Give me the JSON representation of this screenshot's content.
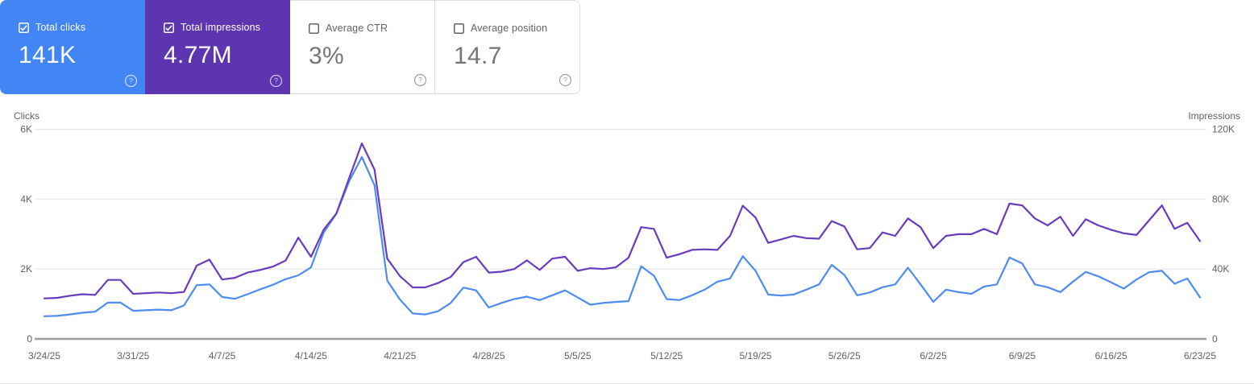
{
  "metric_cards": [
    {
      "id": "total-clicks",
      "label": "Total clicks",
      "value": "141K",
      "checked": true,
      "style": "blue"
    },
    {
      "id": "total-impressions",
      "label": "Total impressions",
      "value": "4.77M",
      "checked": true,
      "style": "purple"
    },
    {
      "id": "average-ctr",
      "label": "Average CTR",
      "value": "3%",
      "checked": false,
      "style": "white"
    },
    {
      "id": "average-position",
      "label": "Average position",
      "value": "14.7",
      "checked": false,
      "style": "white"
    }
  ],
  "icons": {
    "help_glyph": "?"
  },
  "colors": {
    "clicks_card_bg": "#4285f4",
    "impressions_card_bg": "#5e35b1",
    "clicks_line": "#4d8cf0",
    "impressions_line": "#693cbe",
    "grid_line": "#e8eaed",
    "zero_line": "#9aa0a6",
    "tick_text": "#5f6368"
  },
  "chart_data": {
    "type": "line",
    "title": "",
    "grid": true,
    "legend_position": "none",
    "x": [
      "3/24/25",
      "3/25/25",
      "3/26/25",
      "3/27/25",
      "3/28/25",
      "3/29/25",
      "3/30/25",
      "3/31/25",
      "4/1/25",
      "4/2/25",
      "4/3/25",
      "4/4/25",
      "4/5/25",
      "4/6/25",
      "4/7/25",
      "4/8/25",
      "4/9/25",
      "4/10/25",
      "4/11/25",
      "4/12/25",
      "4/13/25",
      "4/14/25",
      "4/15/25",
      "4/16/25",
      "4/17/25",
      "4/18/25",
      "4/19/25",
      "4/20/25",
      "4/21/25",
      "4/22/25",
      "4/23/25",
      "4/24/25",
      "4/25/25",
      "4/26/25",
      "4/27/25",
      "4/28/25",
      "4/29/25",
      "4/30/25",
      "5/1/25",
      "5/2/25",
      "5/3/25",
      "5/4/25",
      "5/5/25",
      "5/6/25",
      "5/7/25",
      "5/8/25",
      "5/9/25",
      "5/10/25",
      "5/11/25",
      "5/12/25",
      "5/13/25",
      "5/14/25",
      "5/15/25",
      "5/16/25",
      "5/17/25",
      "5/18/25",
      "5/19/25",
      "5/20/25",
      "5/21/25",
      "5/22/25",
      "5/23/25",
      "5/24/25",
      "5/25/25",
      "5/26/25",
      "5/27/25",
      "5/28/25",
      "5/29/25",
      "5/30/25",
      "5/31/25",
      "6/1/25",
      "6/2/25",
      "6/3/25",
      "6/4/25",
      "6/5/25",
      "6/6/25",
      "6/7/25",
      "6/8/25",
      "6/9/25",
      "6/10/25",
      "6/11/25",
      "6/12/25",
      "6/13/25",
      "6/14/25",
      "6/15/25",
      "6/16/25",
      "6/17/25",
      "6/18/25",
      "6/19/25",
      "6/20/25",
      "6/21/25",
      "6/22/25",
      "6/23/25"
    ],
    "x_tick_labels": [
      "3/24/25",
      "3/31/25",
      "4/7/25",
      "4/14/25",
      "4/21/25",
      "4/28/25",
      "5/5/25",
      "5/12/25",
      "5/19/25",
      "5/26/25",
      "6/2/25",
      "6/9/25",
      "6/16/25",
      "6/23/25"
    ],
    "x_tick_indices": [
      0,
      7,
      14,
      21,
      28,
      35,
      42,
      49,
      56,
      63,
      70,
      77,
      84,
      91
    ],
    "series": [
      {
        "name": "Clicks",
        "axis": "left",
        "color": "#4d8cf0",
        "values": [
          650,
          660,
          700,
          750,
          780,
          1040,
          1040,
          805,
          820,
          840,
          820,
          960,
          1540,
          1560,
          1200,
          1150,
          1280,
          1420,
          1550,
          1710,
          1820,
          2050,
          3050,
          3590,
          4510,
          5210,
          4400,
          1670,
          1130,
          730,
          700,
          790,
          1030,
          1470,
          1390,
          900,
          1030,
          1140,
          1210,
          1110,
          1250,
          1390,
          1190,
          980,
          1030,
          1060,
          1080,
          2080,
          1810,
          1140,
          1110,
          1250,
          1410,
          1640,
          1730,
          2370,
          1950,
          1270,
          1240,
          1270,
          1410,
          1560,
          2120,
          1830,
          1250,
          1330,
          1480,
          1560,
          2040,
          1560,
          1060,
          1410,
          1340,
          1290,
          1500,
          1560,
          2330,
          2160,
          1560,
          1480,
          1340,
          1640,
          1920,
          1790,
          1620,
          1440,
          1700,
          1910,
          1950,
          1580,
          1730,
          1190
        ]
      },
      {
        "name": "Impressions",
        "axis": "right",
        "color": "#693cbe",
        "values": [
          23200,
          23500,
          24700,
          25600,
          25200,
          33800,
          33800,
          25800,
          26200,
          26600,
          26200,
          26900,
          42000,
          45400,
          34000,
          35000,
          38000,
          39500,
          41400,
          44900,
          58000,
          47000,
          62600,
          71800,
          92000,
          112000,
          97000,
          46000,
          36000,
          29500,
          29500,
          32000,
          35500,
          44000,
          47000,
          38000,
          38500,
          40000,
          45000,
          39500,
          46000,
          47000,
          39000,
          40500,
          40000,
          41000,
          46500,
          64000,
          63000,
          46500,
          48500,
          51000,
          51300,
          51000,
          59000,
          76300,
          69500,
          55000,
          57000,
          59000,
          57700,
          57400,
          67500,
          64400,
          51300,
          52000,
          61000,
          59000,
          69000,
          64000,
          52000,
          59000,
          60000,
          60000,
          63000,
          60000,
          77500,
          76500,
          69000,
          65000,
          70000,
          59000,
          68500,
          65000,
          62500,
          60500,
          59500,
          68000,
          76500,
          63000,
          66500,
          56000
        ]
      }
    ],
    "left_axis": {
      "label": "Clicks",
      "max": 6000,
      "tick_values": [
        0,
        2000,
        4000,
        6000
      ],
      "tick_labels": [
        "0",
        "2K",
        "4K",
        "6K"
      ]
    },
    "right_axis": {
      "label": "Impressions",
      "max": 120000,
      "tick_values": [
        0,
        40000,
        80000,
        120000
      ],
      "tick_labels": [
        "0",
        "40K",
        "80K",
        "120K"
      ]
    }
  }
}
